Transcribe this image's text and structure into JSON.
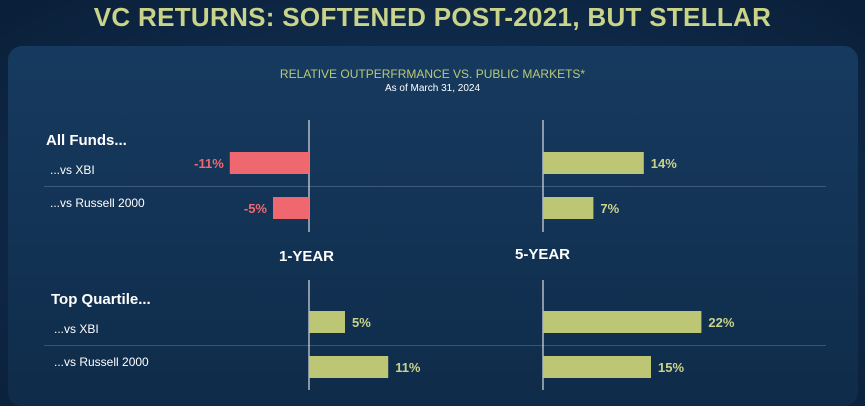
{
  "title": "VC RETURNS: SOFTENED POST-2021, BUT STELLAR",
  "subtitle": "RELATIVE OUTPERFRMANCE VS. PUBLIC MARKETS*",
  "as_of": "As of March 31, 2024",
  "colors": {
    "positive": "#bcc675",
    "negative": "#f0686f",
    "positive_label": "#c9d48a",
    "negative_label": "#f0686f"
  },
  "chart_data": {
    "type": "bar",
    "orientation": "horizontal",
    "value_format": "percent",
    "periods": [
      "1-YEAR",
      "5-YEAR"
    ],
    "groups": [
      {
        "name": "All Funds...",
        "rows": [
          {
            "label": "...vs XBI",
            "values": [
              -11,
              14
            ],
            "labels": [
              "-11%",
              "14%"
            ]
          },
          {
            "label": "...vs Russell 2000",
            "values": [
              -5,
              7
            ],
            "labels": [
              "-5%",
              "7%"
            ]
          }
        ]
      },
      {
        "name": "Top Quartile...",
        "rows": [
          {
            "label": "...vs XBI",
            "values": [
              5,
              22
            ],
            "labels": [
              "5%",
              "22%"
            ]
          },
          {
            "label": "...vs Russell 2000",
            "values": [
              11,
              15
            ],
            "labels": [
              "11%",
              "15%"
            ]
          }
        ]
      }
    ]
  }
}
